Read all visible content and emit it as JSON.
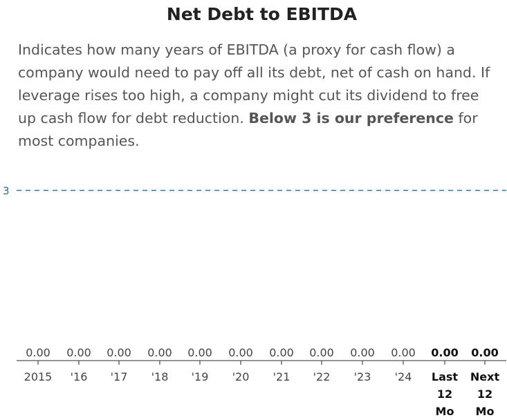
{
  "page": {
    "title": "Net Debt to EBITDA",
    "description_before": "Indicates how many years of EBITDA (a proxy for cash flow) a company would need to pay off all its debt, net of cash on hand. If leverage rises too high, a company might cut its dividend to free up cash flow for debt reduction. ",
    "description_bold": "Below 3 is our preference",
    "description_after": " for most companies."
  },
  "chart_data": {
    "type": "bar",
    "title": "Net Debt to EBITDA",
    "xlabel": "",
    "ylabel": "",
    "reference_line": {
      "value": 3,
      "label": "3",
      "style": "dashed",
      "color": "#1f6f8b"
    },
    "categories": [
      [
        "2015"
      ],
      [
        "'16"
      ],
      [
        "'17"
      ],
      [
        "'18"
      ],
      [
        "'19"
      ],
      [
        "'20"
      ],
      [
        "'21"
      ],
      [
        "'22"
      ],
      [
        "'23"
      ],
      [
        "'24"
      ],
      [
        "Last",
        "12",
        "Mo"
      ],
      [
        "Next",
        "12",
        "Mo"
      ]
    ],
    "values": [
      0,
      0,
      0,
      0,
      0,
      0,
      0,
      0,
      0,
      0,
      0,
      0
    ],
    "value_labels": [
      "0.00",
      "0.00",
      "0.00",
      "0.00",
      "0.00",
      "0.00",
      "0.00",
      "0.00",
      "0.00",
      "0.00",
      "0.00",
      "0.00"
    ],
    "bold_categories": [
      10,
      11
    ],
    "ylim": [
      0,
      3.25
    ],
    "grid": false,
    "colors": {
      "baseline": "#555555",
      "text": "#444444",
      "reference": "#1f6f8b"
    }
  }
}
